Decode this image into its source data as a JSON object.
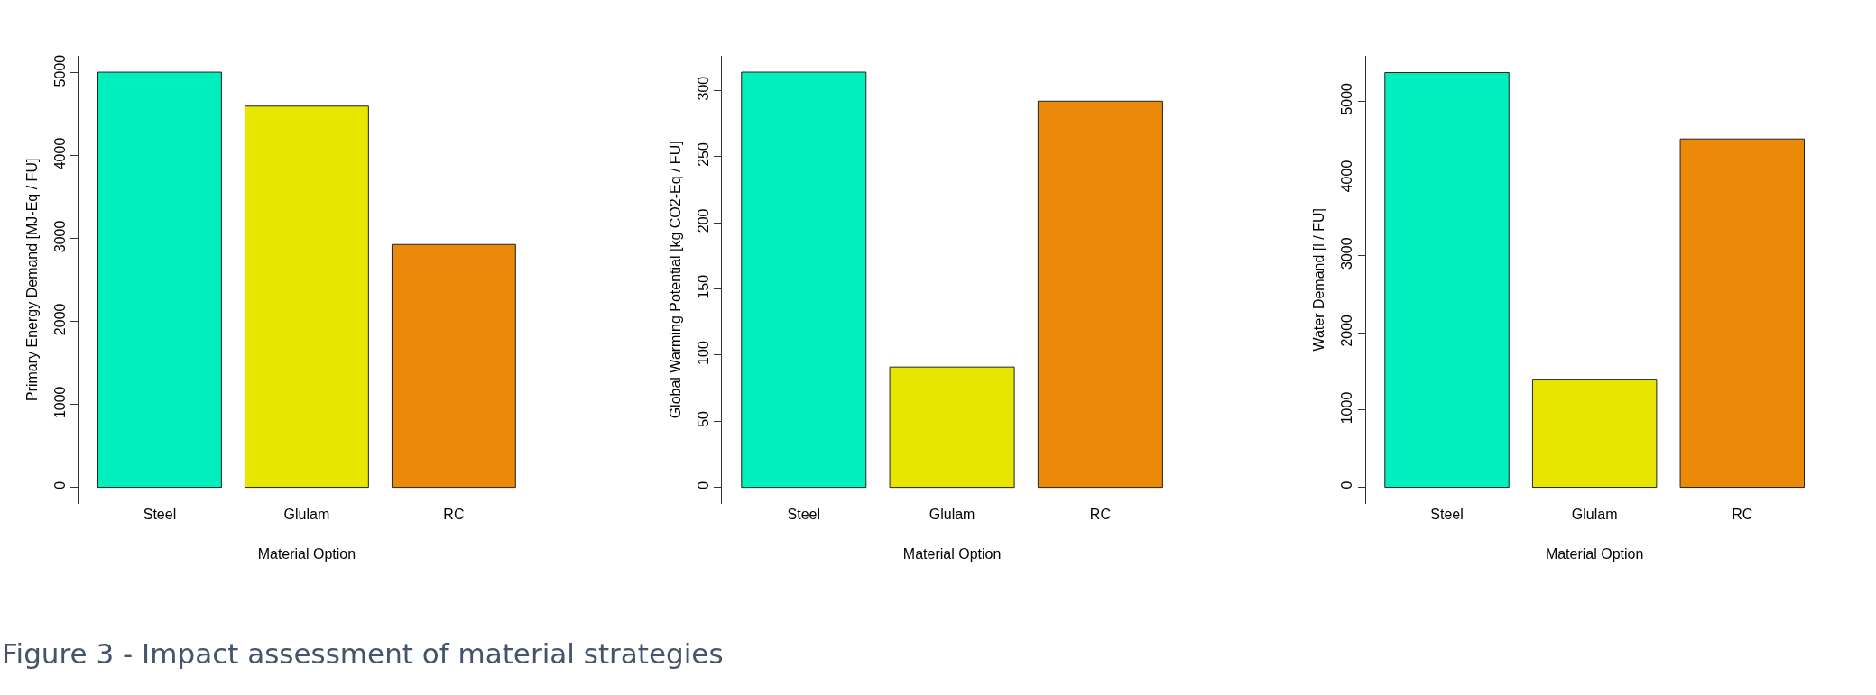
{
  "chart_data": [
    {
      "type": "bar",
      "categories": [
        "Steel",
        "Glulam",
        "RC"
      ],
      "values": [
        5010,
        4600,
        2930
      ],
      "colors": [
        "#00efbd",
        "#e6e600",
        "#eb8a08"
      ],
      "xlabel": "Material Option",
      "ylabel": "Primary Energy Demand [MJ-Eq / FU]",
      "ylim": [
        -200,
        5210
      ],
      "yticks": [
        0,
        1000,
        2000,
        3000,
        4000,
        5000
      ],
      "annotations": [
        "Figure 3 - Impact assessment of material strategies"
      ]
    },
    {
      "type": "bar",
      "categories": [
        "Steel",
        "Glulam",
        "RC"
      ],
      "values": [
        314,
        91,
        292
      ],
      "colors": [
        "#00efbd",
        "#e6e600",
        "#eb8a08"
      ],
      "xlabel": "Material Option",
      "ylabel": "Global Warming Potential [kg CO2-Eq / FU]",
      "ylim": [
        -12.5,
        326.5
      ],
      "yticks": [
        0,
        50,
        100,
        150,
        200,
        250,
        300
      ]
    },
    {
      "type": "bar",
      "categories": [
        "Steel",
        "Glulam",
        "RC"
      ],
      "values": [
        5370,
        1400,
        4510
      ],
      "colors": [
        "#00efbd",
        "#e6e600",
        "#eb8a08"
      ],
      "xlabel": "Material Option",
      "ylabel": "Water Demand [l / FU]",
      "ylim": [
        -215,
        5590
      ],
      "yticks": [
        0,
        1000,
        2000,
        3000,
        4000,
        5000
      ]
    }
  ]
}
